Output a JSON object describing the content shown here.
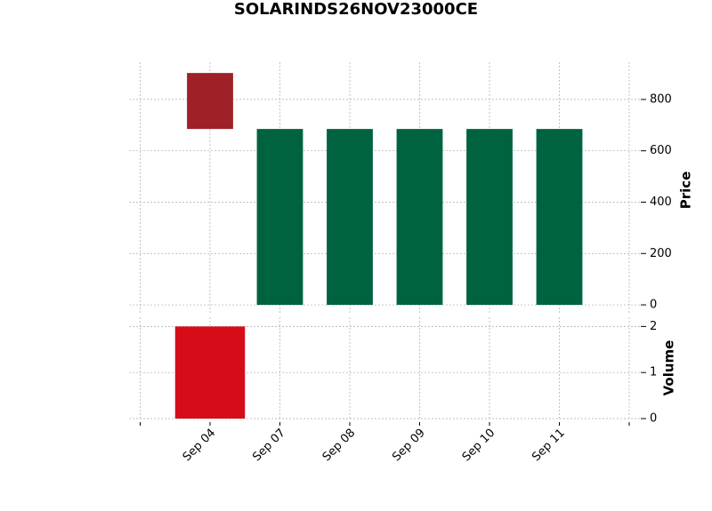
{
  "chart_data": {
    "type": "candlestick",
    "title": "SOLARINDS26NOV23000CE",
    "categories": [
      "Sep 04",
      "Sep 07",
      "Sep 08",
      "Sep 09",
      "Sep 10",
      "Sep 11"
    ],
    "open": [
      903,
      0,
      0,
      0,
      0,
      0
    ],
    "high": [
      903,
      685,
      685,
      685,
      685,
      685
    ],
    "low": [
      685,
      0,
      0,
      0,
      0,
      0
    ],
    "close": [
      685,
      685,
      685,
      685,
      685,
      685
    ],
    "up_color": "#006340",
    "down_color": "#9f2027",
    "ylabel": "Price",
    "ylim": [
      -31,
      945
    ],
    "yticks": [
      0,
      200,
      400,
      600,
      800
    ],
    "volume": {
      "name": "Volume",
      "values": [
        2,
        0,
        0,
        0,
        0,
        0
      ],
      "up_color": "#007a3d",
      "down_color": "#d60d18",
      "ylim": [
        0,
        2.2
      ],
      "yticks": [
        0,
        1,
        2
      ]
    },
    "grid": true
  }
}
